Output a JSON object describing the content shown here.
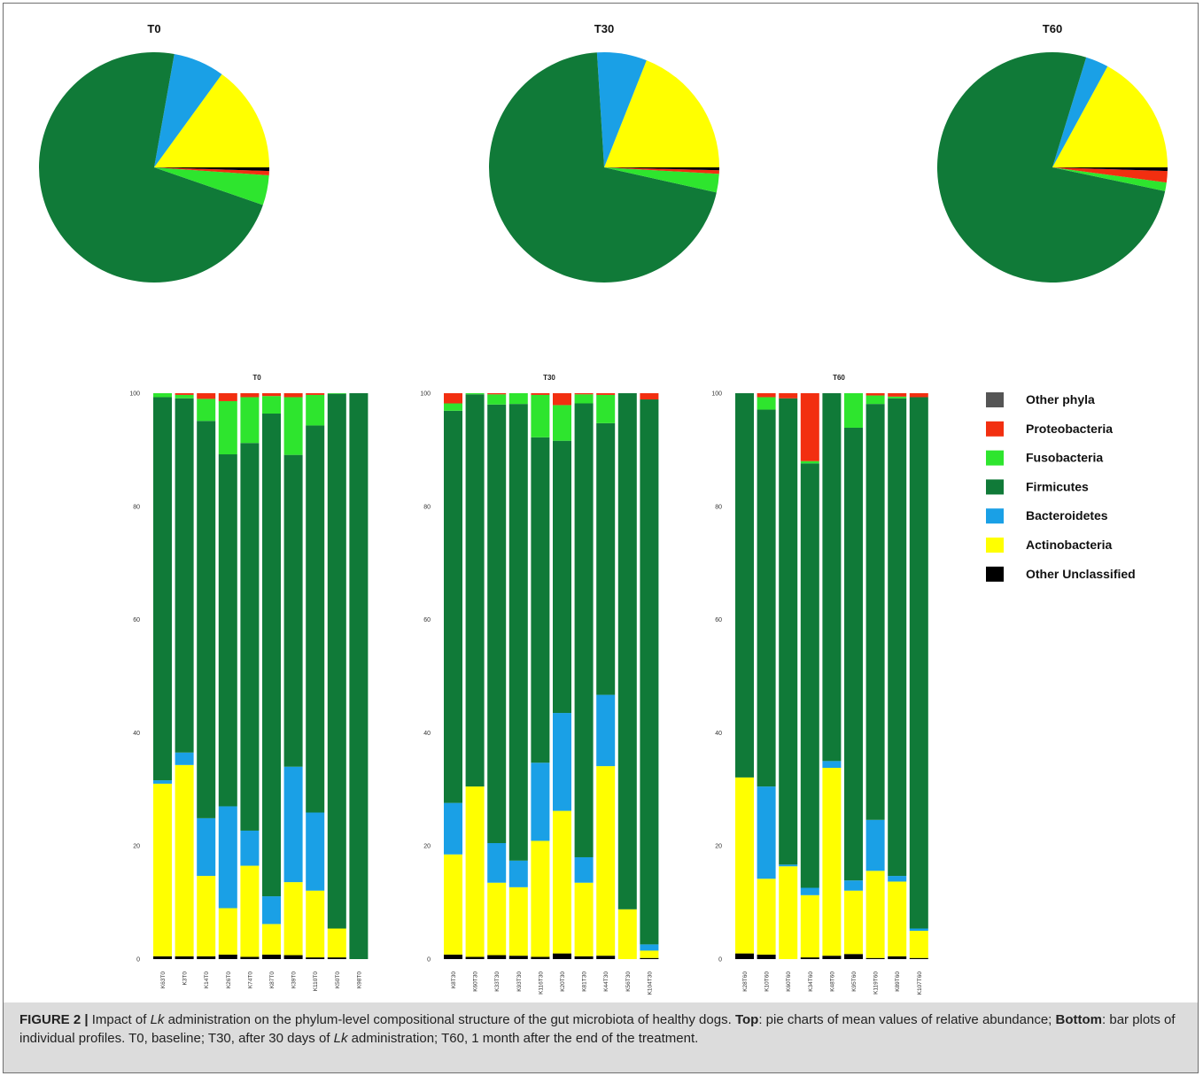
{
  "colors": {
    "Other phyla": "#555555",
    "Proteobacteria": "#f22f10",
    "Fusobacteria": "#2ee52e",
    "Firmicutes": "#107a38",
    "Bacteroidetes": "#1aa0e6",
    "Actinobacteria": "#ffff00",
    "Other Unclassified": "#000000"
  },
  "legend": {
    "entries": [
      "Other phyla",
      "Proteobacteria",
      "Fusobacteria",
      "Firmicutes",
      "Bacteroidetes",
      "Actinobacteria",
      "Other Unclassified"
    ]
  },
  "chart_data": [
    {
      "type": "pie",
      "title": "T0",
      "labels": [
        "Actinobacteria",
        "Bacteroidetes",
        "Firmicutes",
        "Fusobacteria",
        "Proteobacteria",
        "Other Unclassified"
      ],
      "values": [
        15.0,
        7.2,
        72.5,
        4.2,
        0.6,
        0.5
      ]
    },
    {
      "type": "pie",
      "title": "T30",
      "labels": [
        "Actinobacteria",
        "Bacteroidetes",
        "Firmicutes",
        "Fusobacteria",
        "Proteobacteria",
        "Other Unclassified"
      ],
      "values": [
        19.0,
        7.0,
        70.5,
        2.6,
        0.5,
        0.4
      ]
    },
    {
      "type": "pie",
      "title": "T60",
      "labels": [
        "Actinobacteria",
        "Bacteroidetes",
        "Firmicutes",
        "Fusobacteria",
        "Proteobacteria",
        "Other Unclassified"
      ],
      "values": [
        17.0,
        3.2,
        76.2,
        1.2,
        1.6,
        0.5
      ]
    },
    {
      "type": "bar",
      "stacked": true,
      "title": "T0",
      "ylim": [
        0,
        100
      ],
      "yticks": [
        0,
        20,
        40,
        60,
        80,
        100
      ],
      "categories": [
        "K63T0",
        "K3T0",
        "K14T0",
        "K26T0",
        "K74T0",
        "K87T0",
        "K39T0",
        "K110T0",
        "K50T0",
        "K98T0"
      ],
      "series": [
        {
          "name": "Other Unclassified",
          "values": [
            0.5,
            0.5,
            0.5,
            0.8,
            0.4,
            0.8,
            0.7,
            0.3,
            0.3,
            0
          ]
        },
        {
          "name": "Actinobacteria",
          "values": [
            30.5,
            33.8,
            14.2,
            8.2,
            16.1,
            5.4,
            12.9,
            11.8,
            5.1,
            0
          ]
        },
        {
          "name": "Bacteroidetes",
          "values": [
            0.6,
            2.2,
            10.2,
            18.0,
            6.2,
            4.9,
            20.4,
            13.8,
            0,
            0
          ]
        },
        {
          "name": "Firmicutes",
          "values": [
            67.7,
            62.6,
            70.2,
            62.2,
            68.5,
            85.3,
            55.1,
            68.4,
            94.5,
            100
          ]
        },
        {
          "name": "Fusobacteria",
          "values": [
            0.7,
            0.6,
            3.9,
            9.4,
            8.1,
            3.1,
            10.2,
            5.4,
            0.1,
            0
          ]
        },
        {
          "name": "Proteobacteria",
          "values": [
            0,
            0.3,
            1.0,
            1.4,
            0.7,
            0.5,
            0.7,
            0.3,
            0,
            0
          ]
        },
        {
          "name": "Other phyla",
          "values": [
            0,
            0,
            0,
            0,
            0,
            0,
            0,
            0,
            0,
            0
          ]
        }
      ]
    },
    {
      "type": "bar",
      "stacked": true,
      "title": "T30",
      "ylim": [
        0,
        100
      ],
      "yticks": [
        0,
        20,
        40,
        60,
        80,
        100
      ],
      "categories": [
        "K8T30",
        "K60T30",
        "K33T30",
        "K93T30",
        "K116T30",
        "K20T30",
        "K81T30",
        "K44T30",
        "K56T30",
        "K104T30"
      ],
      "series": [
        {
          "name": "Other Unclassified",
          "values": [
            0.8,
            0.4,
            0.7,
            0.6,
            0.4,
            1.0,
            0.5,
            0.6,
            0,
            0.2
          ]
        },
        {
          "name": "Actinobacteria",
          "values": [
            17.7,
            30.1,
            12.8,
            12.1,
            20.5,
            25.2,
            13.0,
            33.5,
            8.8,
            1.3
          ]
        },
        {
          "name": "Bacteroidetes",
          "values": [
            9.1,
            0,
            7.0,
            4.7,
            13.8,
            17.3,
            4.5,
            12.6,
            0,
            1.1
          ]
        },
        {
          "name": "Firmicutes",
          "values": [
            69.3,
            69.3,
            77.5,
            80.7,
            57.5,
            48.1,
            80.2,
            48.0,
            91.2,
            96.3
          ]
        },
        {
          "name": "Fusobacteria",
          "values": [
            1.3,
            0.2,
            1.8,
            1.9,
            7.5,
            6.3,
            1.6,
            5.0,
            0,
            0
          ]
        },
        {
          "name": "Proteobacteria",
          "values": [
            1.8,
            0,
            0.2,
            0,
            0.3,
            2.1,
            0.2,
            0.3,
            0,
            1.1
          ]
        },
        {
          "name": "Other phyla",
          "values": [
            0,
            0,
            0,
            0,
            0,
            0,
            0,
            0,
            0,
            0
          ]
        }
      ]
    },
    {
      "type": "bar",
      "stacked": true,
      "title": "T60",
      "ylim": [
        0,
        100
      ],
      "yticks": [
        0,
        20,
        40,
        60,
        80,
        100
      ],
      "categories": [
        "K28T60",
        "K10T60",
        "K60T60",
        "K34T60",
        "K48T60",
        "K95T60",
        "K119T60",
        "K89T60",
        "K107T60"
      ],
      "series": [
        {
          "name": "Other Unclassified",
          "values": [
            1.0,
            0.8,
            0,
            0.3,
            0.6,
            0.9,
            0.2,
            0.5,
            0.2
          ]
        },
        {
          "name": "Actinobacteria",
          "values": [
            31.1,
            13.4,
            16.4,
            11.0,
            33.2,
            11.2,
            15.4,
            13.2,
            4.8
          ]
        },
        {
          "name": "Bacteroidetes",
          "values": [
            0,
            16.3,
            0.3,
            1.3,
            1.2,
            1.8,
            9.0,
            1.0,
            0.4
          ]
        },
        {
          "name": "Firmicutes",
          "values": [
            67.9,
            66.6,
            82.4,
            75.0,
            65.0,
            80.0,
            73.5,
            84.4,
            93.9
          ]
        },
        {
          "name": "Fusobacteria",
          "values": [
            0,
            2.2,
            0,
            0.4,
            0,
            6.1,
            1.5,
            0.3,
            0
          ]
        },
        {
          "name": "Proteobacteria",
          "values": [
            0,
            0.7,
            0.9,
            12.0,
            0,
            0,
            0.4,
            0.6,
            0.7
          ]
        },
        {
          "name": "Other phyla",
          "values": [
            0,
            0,
            0,
            0,
            0,
            0,
            0,
            0,
            0
          ]
        }
      ]
    }
  ],
  "caption": {
    "label": "FIGURE 2 |",
    "t1": " Impact of ",
    "lk1": "Lk",
    "t2": " administration on the phylum-level compositional structure of the gut microbiota of healthy dogs. ",
    "top": "Top",
    "t3": ": pie charts of mean values of relative abundance; ",
    "bottom": "Bottom",
    "t4": ": bar plots of individual profiles. T0, baseline; T30, after 30 days of ",
    "lk2": "Lk",
    "t5": " administration; T60, 1 month after the end of the treatment."
  }
}
